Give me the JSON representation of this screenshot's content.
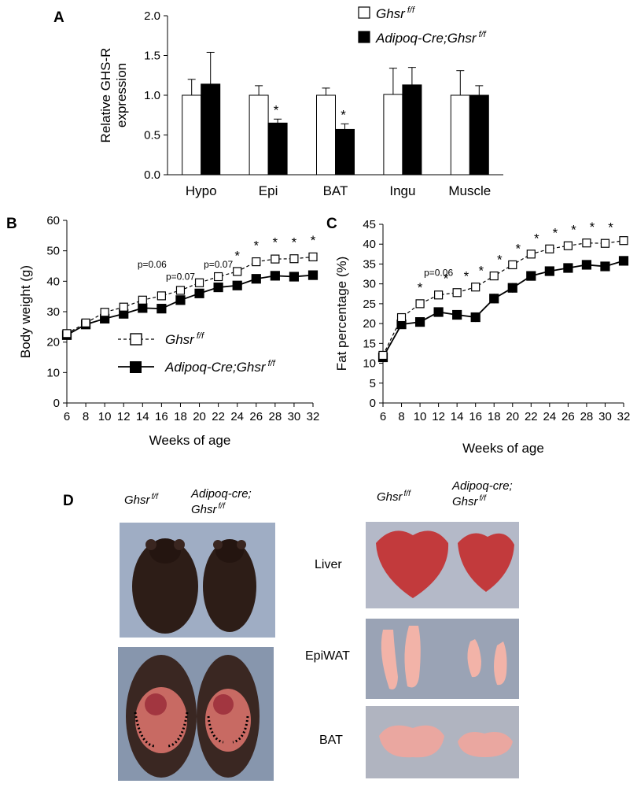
{
  "panels": {
    "a": "A",
    "b": "B",
    "c": "C",
    "d": "D"
  },
  "colors": {
    "black": "#000000",
    "white": "#ffffff",
    "photo_bg": "#9aa9c0",
    "fur": "#2d1d17",
    "liver": "#c23a3c",
    "fat": "#f2b3a8",
    "bat": "#eaa7a0"
  },
  "chart_data": [
    {
      "id": "A",
      "type": "bar",
      "title": "",
      "ylabel_line1": "Relative GHS-R",
      "ylabel_line2": "expression",
      "ylim": [
        0,
        2.0
      ],
      "yticks": [
        "0.0",
        "0.5",
        "1.0",
        "1.5",
        "2.0"
      ],
      "ytick_values": [
        0,
        0.5,
        1.0,
        1.5,
        2.0
      ],
      "categories": [
        "Hypo",
        "Epi",
        "BAT",
        "Ingu",
        "Muscle"
      ],
      "series": [
        {
          "name": "Ghsr",
          "sup": "f/f",
          "fill": "white",
          "values": [
            1.0,
            1.0,
            1.0,
            1.01,
            1.0
          ],
          "errors": [
            0.2,
            0.12,
            0.09,
            0.33,
            0.31
          ]
        },
        {
          "name": "Adipoq-Cre;Ghsr",
          "sup": "f/f",
          "fill": "black",
          "values": [
            1.14,
            0.65,
            0.57,
            1.13,
            1.0
          ],
          "errors": [
            0.4,
            0.05,
            0.07,
            0.22,
            0.12
          ]
        }
      ],
      "significance": [
        "",
        "*",
        "*",
        "",
        ""
      ]
    },
    {
      "id": "B",
      "type": "line",
      "xlabel": "Weeks of age",
      "ylabel": "Body weight (g)",
      "x": [
        6,
        8,
        10,
        12,
        14,
        16,
        18,
        20,
        22,
        24,
        26,
        28,
        30,
        32
      ],
      "xticks": [
        "6",
        "8",
        "10",
        "12",
        "14",
        "16",
        "18",
        "20",
        "22",
        "24",
        "26",
        "28",
        "30",
        "32"
      ],
      "ylim": [
        0,
        60
      ],
      "yticks": [
        "0",
        "10",
        "20",
        "30",
        "40",
        "50",
        "60"
      ],
      "ytick_values": [
        0,
        10,
        20,
        30,
        40,
        50,
        60
      ],
      "series": [
        {
          "name": "Ghsr",
          "sup": "f/f",
          "marker": "open-square",
          "dash": true,
          "values": [
            22.8,
            26.3,
            29.8,
            31.5,
            33.8,
            35.2,
            37.0,
            39.5,
            41.5,
            43.2,
            46.4,
            47.3,
            47.4,
            48.0
          ],
          "errors": [
            0.8,
            0.8,
            1.0,
            1.0,
            1.0,
            1.0,
            1.0,
            1.1,
            1.1,
            1.1,
            1.3,
            1.4,
            1.3,
            1.4
          ]
        },
        {
          "name": "Adipoq-Cre;Ghsr",
          "sup": "f/f",
          "marker": "filled-square",
          "dash": false,
          "values": [
            22.3,
            25.8,
            27.7,
            29.3,
            31.2,
            31.0,
            33.8,
            36.0,
            38.0,
            38.6,
            40.8,
            41.8,
            41.5,
            42.0
          ],
          "errors": [
            0.8,
            0.8,
            0.9,
            0.9,
            1.0,
            1.0,
            1.0,
            1.0,
            1.0,
            1.0,
            1.0,
            1.0,
            1.0,
            1.0
          ]
        }
      ],
      "annotations": [
        {
          "x": 15,
          "y": 44.5,
          "text": "p=0.06"
        },
        {
          "x": 18,
          "y": 40.5,
          "text": "p=0.07"
        },
        {
          "x": 22,
          "y": 44.5,
          "text": "p=0.07"
        }
      ],
      "stars": [
        {
          "x": 24,
          "text": "*"
        },
        {
          "x": 26,
          "text": "*"
        },
        {
          "x": 28,
          "text": "*"
        },
        {
          "x": 30,
          "text": "*"
        },
        {
          "x": 32,
          "text": "*"
        }
      ]
    },
    {
      "id": "C",
      "type": "line",
      "xlabel": "Weeks of age",
      "ylabel": "Fat percentage (%)",
      "x": [
        6,
        8,
        10,
        12,
        14,
        16,
        18,
        20,
        22,
        24,
        26,
        28,
        30,
        32
      ],
      "xticks": [
        "6",
        "8",
        "10",
        "12",
        "14",
        "16",
        "18",
        "20",
        "22",
        "24",
        "26",
        "28",
        "30",
        "32"
      ],
      "ylim": [
        0,
        45
      ],
      "yticks": [
        "0",
        "5",
        "10",
        "15",
        "20",
        "25",
        "30",
        "35",
        "40",
        "45"
      ],
      "ytick_values": [
        0,
        5,
        10,
        15,
        20,
        25,
        30,
        35,
        40,
        45
      ],
      "series": [
        {
          "name": "Ghsr",
          "sup": "f/f",
          "marker": "open-square",
          "dash": true,
          "values": [
            12.0,
            21.5,
            25.0,
            27.2,
            27.8,
            29.2,
            32.0,
            34.8,
            37.5,
            38.8,
            39.6,
            40.3,
            40.2,
            40.9
          ],
          "errors": [
            0.8,
            0.8,
            1.0,
            1.0,
            1.0,
            1.0,
            1.0,
            1.0,
            0.9,
            0.9,
            0.9,
            0.9,
            0.9,
            0.9
          ]
        },
        {
          "name": "Adipoq-Cre;Ghsr",
          "sup": "f/f",
          "marker": "filled-square",
          "dash": false,
          "values": [
            11.5,
            19.8,
            20.4,
            22.9,
            22.2,
            21.6,
            26.3,
            29.0,
            32.0,
            33.2,
            34.0,
            34.8,
            34.4,
            35.8
          ],
          "errors": [
            0.8,
            0.8,
            1.0,
            1.1,
            1.1,
            1.2,
            1.2,
            1.2,
            1.1,
            1.0,
            1.0,
            1.0,
            1.0,
            1.0
          ]
        }
      ],
      "annotations": [
        {
          "x": 12,
          "y": 32.0,
          "text": "p=0.06"
        }
      ],
      "stars": [
        {
          "x": 10,
          "text": "*"
        },
        {
          "x": 12.8,
          "text": "*"
        },
        {
          "x": 15,
          "text": "*"
        },
        {
          "x": 16.6,
          "text": "*"
        },
        {
          "x": 18.6,
          "text": "*"
        },
        {
          "x": 20.6,
          "text": "*"
        },
        {
          "x": 22.6,
          "text": "*"
        },
        {
          "x": 24.6,
          "text": "*"
        },
        {
          "x": 26.6,
          "text": "*"
        },
        {
          "x": 28.6,
          "text": "*"
        },
        {
          "x": 30.6,
          "text": "*"
        }
      ]
    }
  ],
  "photos": {
    "left_header_1": "Ghsr",
    "left_header_1_sup": "f/f",
    "left_header_2_line1": "Adipoq-cre;",
    "left_header_2_line2": "Ghsr",
    "left_header_2_sup": "f/f",
    "right_header_1": "Ghsr",
    "right_header_1_sup": "f/f",
    "right_header_2_line1": "Adipoq-cre;",
    "right_header_2_line2": "Ghsr",
    "right_header_2_sup": "f/f",
    "rows": [
      "Liver",
      "EpiWAT",
      "BAT"
    ]
  }
}
